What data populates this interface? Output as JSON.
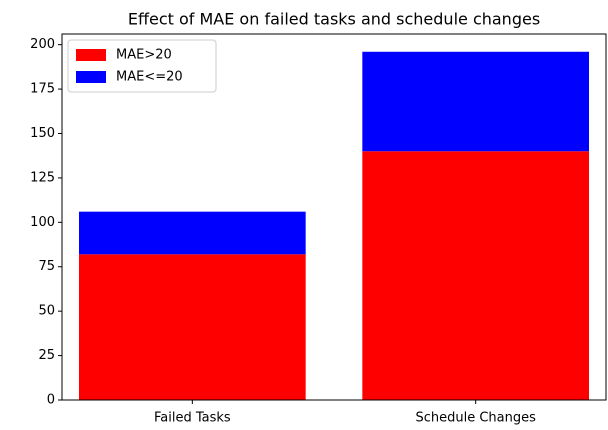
{
  "chart_data": {
    "type": "stacked_bar",
    "title": "Effect of MAE on failed tasks and schedule changes",
    "categories": [
      "Failed Tasks",
      "Schedule Changes"
    ],
    "series": [
      {
        "name": "MAE>20",
        "color": "#ff0000",
        "values": [
          82,
          140
        ]
      },
      {
        "name": "MAE<=20",
        "color": "#0000ff",
        "values": [
          24,
          56
        ]
      }
    ],
    "ylim": [
      0,
      206
    ],
    "yticks": [
      0,
      25,
      50,
      75,
      100,
      125,
      150,
      175,
      200
    ],
    "grid": false,
    "legend": "upper left"
  }
}
